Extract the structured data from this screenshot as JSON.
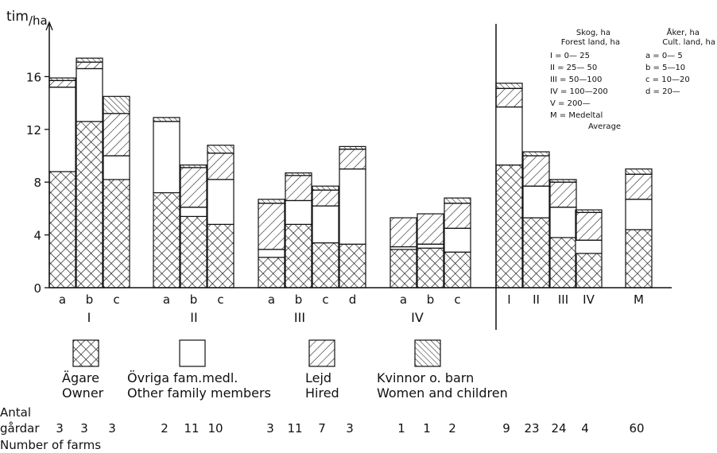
{
  "chart_data": {
    "type": "bar",
    "stacked": true,
    "ylabel_main": "tim",
    "ylabel_sub": "/ha",
    "ylim": [
      0,
      18
    ],
    "yticks": [
      0,
      4,
      8,
      12,
      16
    ],
    "series": [
      {
        "key": "owner",
        "label_sv": "Ägare",
        "label_en": "Owner",
        "pattern": "crosshatch"
      },
      {
        "key": "family",
        "label_sv": "Övriga fam.medl.",
        "label_en": "Other family members",
        "pattern": "blank"
      },
      {
        "key": "hired",
        "label_sv": "Lejd",
        "label_en": "Hired",
        "pattern": "diag-right"
      },
      {
        "key": "women",
        "label_sv": "Kvinnor o. barn",
        "label_en": "Women and children",
        "pattern": "diag-left"
      }
    ],
    "groups": [
      {
        "label": "I",
        "bars": [
          {
            "cat": "a",
            "farms": "3",
            "owner": 8.8,
            "family": 6.4,
            "hired": 0.5,
            "women": 0.2
          },
          {
            "cat": "b",
            "farms": "3",
            "owner": 12.6,
            "family": 4.0,
            "hired": 0.5,
            "women": 0.3
          },
          {
            "cat": "c",
            "farms": "3",
            "owner": 8.2,
            "family": 1.8,
            "hired": 3.2,
            "women": 1.3
          }
        ]
      },
      {
        "label": "II",
        "bars": [
          {
            "cat": "a",
            "farms": "2",
            "owner": 7.2,
            "family": 5.4,
            "hired": 0.0,
            "women": 0.3
          },
          {
            "cat": "b",
            "farms": "11",
            "owner": 5.4,
            "family": 0.7,
            "hired": 3.0,
            "women": 0.2
          },
          {
            "cat": "c",
            "farms": "10",
            "owner": 4.8,
            "family": 3.4,
            "hired": 2.0,
            "women": 0.6
          }
        ]
      },
      {
        "label": "III",
        "bars": [
          {
            "cat": "a",
            "farms": "3",
            "owner": 2.3,
            "family": 0.6,
            "hired": 3.5,
            "women": 0.3
          },
          {
            "cat": "b",
            "farms": "11",
            "owner": 4.8,
            "family": 1.8,
            "hired": 1.9,
            "women": 0.2
          },
          {
            "cat": "c",
            "farms": "7",
            "owner": 3.4,
            "family": 2.8,
            "hired": 1.2,
            "women": 0.3
          },
          {
            "cat": "d",
            "farms": "3",
            "owner": 3.3,
            "family": 5.7,
            "hired": 1.5,
            "women": 0.2
          }
        ]
      },
      {
        "label": "IV",
        "bars": [
          {
            "cat": "a",
            "farms": "1",
            "owner": 2.9,
            "family": 0.2,
            "hired": 2.2,
            "women": 0.0
          },
          {
            "cat": "b",
            "farms": "1",
            "owner": 3.0,
            "family": 0.3,
            "hired": 2.3,
            "women": 0.0
          },
          {
            "cat": "c",
            "farms": "2",
            "owner": 2.7,
            "family": 1.8,
            "hired": 1.9,
            "women": 0.4
          }
        ]
      },
      {
        "label": "",
        "bars": [
          {
            "cat": "I",
            "farms": "9",
            "owner": 9.3,
            "family": 4.4,
            "hired": 1.4,
            "women": 0.4
          },
          {
            "cat": "II",
            "farms": "23",
            "owner": 5.3,
            "family": 2.4,
            "hired": 2.3,
            "women": 0.3
          },
          {
            "cat": "III",
            "farms": "24",
            "owner": 3.8,
            "family": 2.3,
            "hired": 1.9,
            "women": 0.2
          },
          {
            "cat": "IV",
            "farms": "4",
            "owner": 2.6,
            "family": 1.0,
            "hired": 2.1,
            "women": 0.2
          }
        ]
      },
      {
        "label": "",
        "bars": [
          {
            "cat": "M",
            "farms": "60",
            "owner": 4.4,
            "family": 2.3,
            "hired": 1.9,
            "women": 0.4
          }
        ]
      }
    ],
    "legend_forest": {
      "title_sv": "Skog, ha",
      "title_en": "Forest land, ha",
      "rows": [
        "I  =   0— 25",
        "II  =  25— 50",
        "III  =  50—100",
        "IV  = 100—200",
        "V  = 200—",
        "M  = Medeltal",
        "Average"
      ]
    },
    "legend_cult": {
      "title_sv": "Åker, ha",
      "title_en": "Cult. land, ha",
      "rows": [
        "a  =   0— 5",
        "b  =   5—10",
        "c  = 10—20",
        "d  = 20—"
      ]
    },
    "farms_label": [
      "Antal",
      "gårdar",
      "Number of farms"
    ]
  }
}
